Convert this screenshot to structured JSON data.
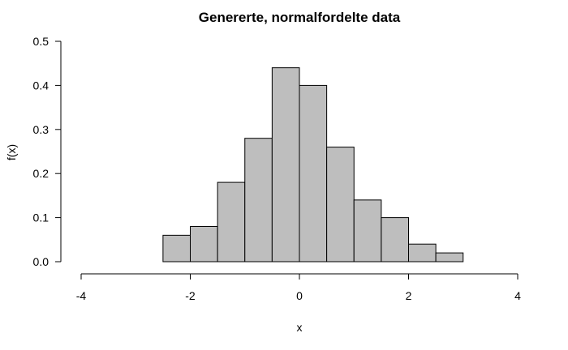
{
  "chart_data": {
    "type": "bar",
    "title": "Genererte, normalfordelte data",
    "xlabel": "x",
    "ylabel": "f(x)",
    "xlim": [
      -4,
      4
    ],
    "ylim": [
      0,
      0.5
    ],
    "x_ticks": [
      -4,
      -2,
      0,
      2,
      4
    ],
    "y_ticks": [
      0.0,
      0.1,
      0.2,
      0.3,
      0.4,
      0.5
    ],
    "x_tick_labels": [
      "-4",
      "-2",
      "0",
      "2",
      "4"
    ],
    "y_tick_labels": [
      "0.0",
      "0.1",
      "0.2",
      "0.3",
      "0.4",
      "0.5"
    ],
    "bin_width": 0.5,
    "bins": [
      {
        "from": -2.5,
        "to": -2.0,
        "density": 0.06
      },
      {
        "from": -2.0,
        "to": -1.5,
        "density": 0.08
      },
      {
        "from": -1.5,
        "to": -1.0,
        "density": 0.18
      },
      {
        "from": -1.0,
        "to": -0.5,
        "density": 0.28
      },
      {
        "from": -0.5,
        "to": 0.0,
        "density": 0.44
      },
      {
        "from": 0.0,
        "to": 0.5,
        "density": 0.4
      },
      {
        "from": 0.5,
        "to": 1.0,
        "density": 0.26
      },
      {
        "from": 1.0,
        "to": 1.5,
        "density": 0.14
      },
      {
        "from": 1.5,
        "to": 2.0,
        "density": 0.1
      },
      {
        "from": 2.0,
        "to": 2.5,
        "density": 0.04
      },
      {
        "from": 2.5,
        "to": 3.0,
        "density": 0.02
      }
    ],
    "grid": false,
    "bar_color": "#bebebe",
    "edge_color": "#000000"
  }
}
